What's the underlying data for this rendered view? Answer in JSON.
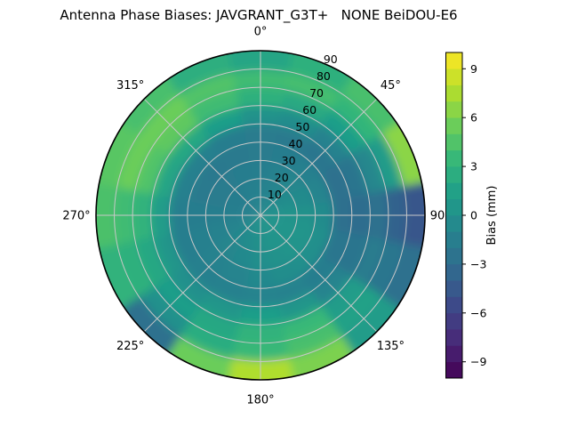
{
  "title": "Antenna Phase Biases: JAVGRANT_G3T+   NONE BeiDOU-E6",
  "chart_data": {
    "type": "heatmap",
    "projection": "polar",
    "title": "Antenna Phase Biases: JAVGRANT_G3T+   NONE BeiDOU-E6",
    "background": "#ffffff",
    "grid_color": "#c8c8c8",
    "outline_color": "#000000",
    "angular_ticks": [
      {
        "label": "0°",
        "azimuth_deg": 0
      },
      {
        "label": "45°",
        "azimuth_deg": 45
      },
      {
        "label": "90",
        "azimuth_deg": 90
      },
      {
        "label": "135°",
        "azimuth_deg": 135
      },
      {
        "label": "180°",
        "azimuth_deg": 180
      },
      {
        "label": "225°",
        "azimuth_deg": 225
      },
      {
        "label": "270°",
        "azimuth_deg": 270
      },
      {
        "label": "315°",
        "azimuth_deg": 315
      }
    ],
    "radial_ticks": [
      "10",
      "20",
      "30",
      "40",
      "50",
      "60",
      "70",
      "80",
      "90"
    ],
    "radial_tick_values": [
      10,
      20,
      30,
      40,
      50,
      60,
      70,
      80,
      90
    ],
    "radial_tick_azimuth_deg": 22.5,
    "radial_max": 90,
    "grid": {
      "azimuth_deg": [
        0,
        22.5,
        45,
        67.5,
        90,
        112.5,
        135,
        157.5,
        180,
        202.5,
        225,
        247.5,
        270,
        292.5,
        315,
        337.5
      ],
      "zenith_deg": [
        5,
        15,
        25,
        35,
        45,
        55,
        65,
        75,
        85
      ],
      "bias_mm": [
        [
          -1.0,
          -0.8,
          -0.5,
          -0.2,
          0.2,
          0.3,
          0.3,
          0.3,
          0.2,
          0.0,
          -0.3,
          -0.8,
          -1.2,
          -1.3,
          -1.3,
          -1.2
        ],
        [
          -1.3,
          -1.0,
          -0.6,
          -0.2,
          0.3,
          0.4,
          0.4,
          0.3,
          0.1,
          -0.3,
          -0.6,
          -1.0,
          -1.4,
          -1.6,
          -1.6,
          -1.4
        ],
        [
          -1.5,
          -1.2,
          -0.9,
          -0.4,
          0.2,
          0.4,
          0.3,
          0.2,
          -0.1,
          -0.6,
          -0.9,
          -1.2,
          -1.5,
          -1.8,
          -1.8,
          -1.6
        ],
        [
          -1.8,
          -1.6,
          -1.4,
          -1.0,
          -0.4,
          -0.1,
          -0.1,
          -0.3,
          -0.6,
          -1.0,
          -1.2,
          -1.4,
          -1.6,
          -1.9,
          -2.0,
          -1.9
        ],
        [
          -1.8,
          -1.9,
          -2.2,
          -2.6,
          -2.8,
          -2.2,
          -1.6,
          -1.2,
          -1.1,
          -1.3,
          -1.4,
          -1.5,
          -1.5,
          -1.4,
          -1.4,
          -1.6
        ],
        [
          0.2,
          -0.3,
          -1.2,
          -2.4,
          -3.0,
          -2.4,
          -1.0,
          0.5,
          1.2,
          0.5,
          0.0,
          0.5,
          1.0,
          1.8,
          2.0,
          1.2
        ],
        [
          2.8,
          2.2,
          1.2,
          -0.8,
          -2.6,
          -1.8,
          1.0,
          3.5,
          3.0,
          2.0,
          1.2,
          2.0,
          3.0,
          4.5,
          5.0,
          3.8
        ],
        [
          3.8,
          4.0,
          3.2,
          1.0,
          -3.8,
          -2.2,
          1.5,
          4.2,
          3.5,
          2.5,
          0.0,
          2.8,
          3.8,
          5.5,
          5.5,
          4.5
        ],
        [
          1.8,
          2.8,
          4.2,
          6.5,
          -4.6,
          -2.6,
          1.0,
          6.0,
          7.6,
          5.5,
          -2.6,
          3.0,
          4.3,
          4.8,
          4.2,
          2.6
        ]
      ]
    },
    "colorbar": {
      "label": "Bias (mm)",
      "min": -10,
      "max": 10,
      "step": 1,
      "ticks": [
        "9",
        "6",
        "3",
        "0",
        "−3",
        "−6",
        "−9"
      ],
      "tick_values": [
        9,
        6,
        3,
        0,
        -3,
        -6,
        -9
      ]
    },
    "colormap": {
      "name": "viridis",
      "stops": [
        [
          0.0,
          "#440154"
        ],
        [
          0.11,
          "#482878"
        ],
        [
          0.22,
          "#3e4989"
        ],
        [
          0.33,
          "#31688e"
        ],
        [
          0.44,
          "#26828e"
        ],
        [
          0.56,
          "#1f9e89"
        ],
        [
          0.67,
          "#35b779"
        ],
        [
          0.78,
          "#6ece58"
        ],
        [
          0.89,
          "#b5de2b"
        ],
        [
          1.0,
          "#fde725"
        ]
      ]
    }
  }
}
